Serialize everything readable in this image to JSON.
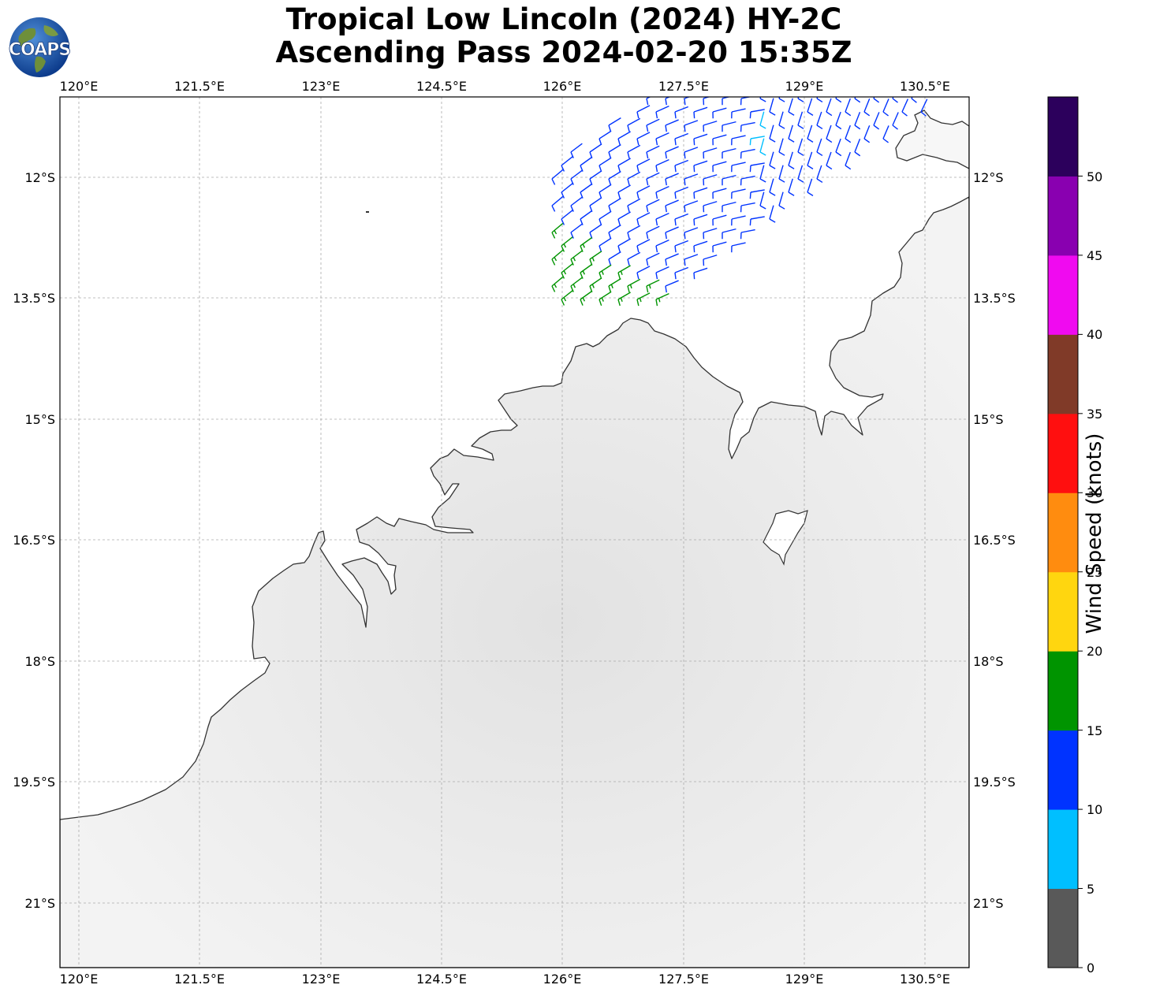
{
  "title": {
    "line1": "Tropical Low Lincoln (2024) HY-2C",
    "line2": "Ascending Pass 2024-02-20 15:35Z"
  },
  "logo": {
    "text": "COAPS",
    "icon": "globe-logo"
  },
  "map": {
    "lon_labels": [
      "120°E",
      "121.5°E",
      "123°E",
      "124.5°E",
      "126°E",
      "127.5°E",
      "129°E",
      "130.5°E"
    ],
    "lat_labels": [
      "12°S",
      "13.5°S",
      "15°S",
      "16.5°S",
      "18°S",
      "19.5°S",
      "21°S"
    ],
    "land_color": "#efefef",
    "ocean_color": "#ffffff",
    "coastline_color": "#333333"
  },
  "colorbar": {
    "label": "Wind Speed (knots)",
    "ticks": [
      "0",
      "5",
      "10",
      "15",
      "20",
      "25",
      "30",
      "35",
      "40",
      "45",
      "50"
    ],
    "bins": [
      {
        "min": 0,
        "max": 5,
        "color": "#595959"
      },
      {
        "min": 5,
        "max": 10,
        "color": "#00bfff"
      },
      {
        "min": 10,
        "max": 15,
        "color": "#0033ff"
      },
      {
        "min": 15,
        "max": 20,
        "color": "#009400"
      },
      {
        "min": 20,
        "max": 25,
        "color": "#ffd60f"
      },
      {
        "min": 25,
        "max": 30,
        "color": "#ff8c0f"
      },
      {
        "min": 30,
        "max": 35,
        "color": "#ff0f0f"
      },
      {
        "min": 35,
        "max": 40,
        "color": "#803a28"
      },
      {
        "min": 40,
        "max": 45,
        "color": "#f00af0"
      },
      {
        "min": 45,
        "max": 50,
        "color": "#8900b0"
      },
      {
        "min": 50,
        "max": 55,
        "color": "#2c005c"
      }
    ]
  },
  "wind_barbs": {
    "colors": {
      "5-10": "#00bfff",
      "10-15": "#0033ff",
      "15-20": "#009400"
    }
  }
}
